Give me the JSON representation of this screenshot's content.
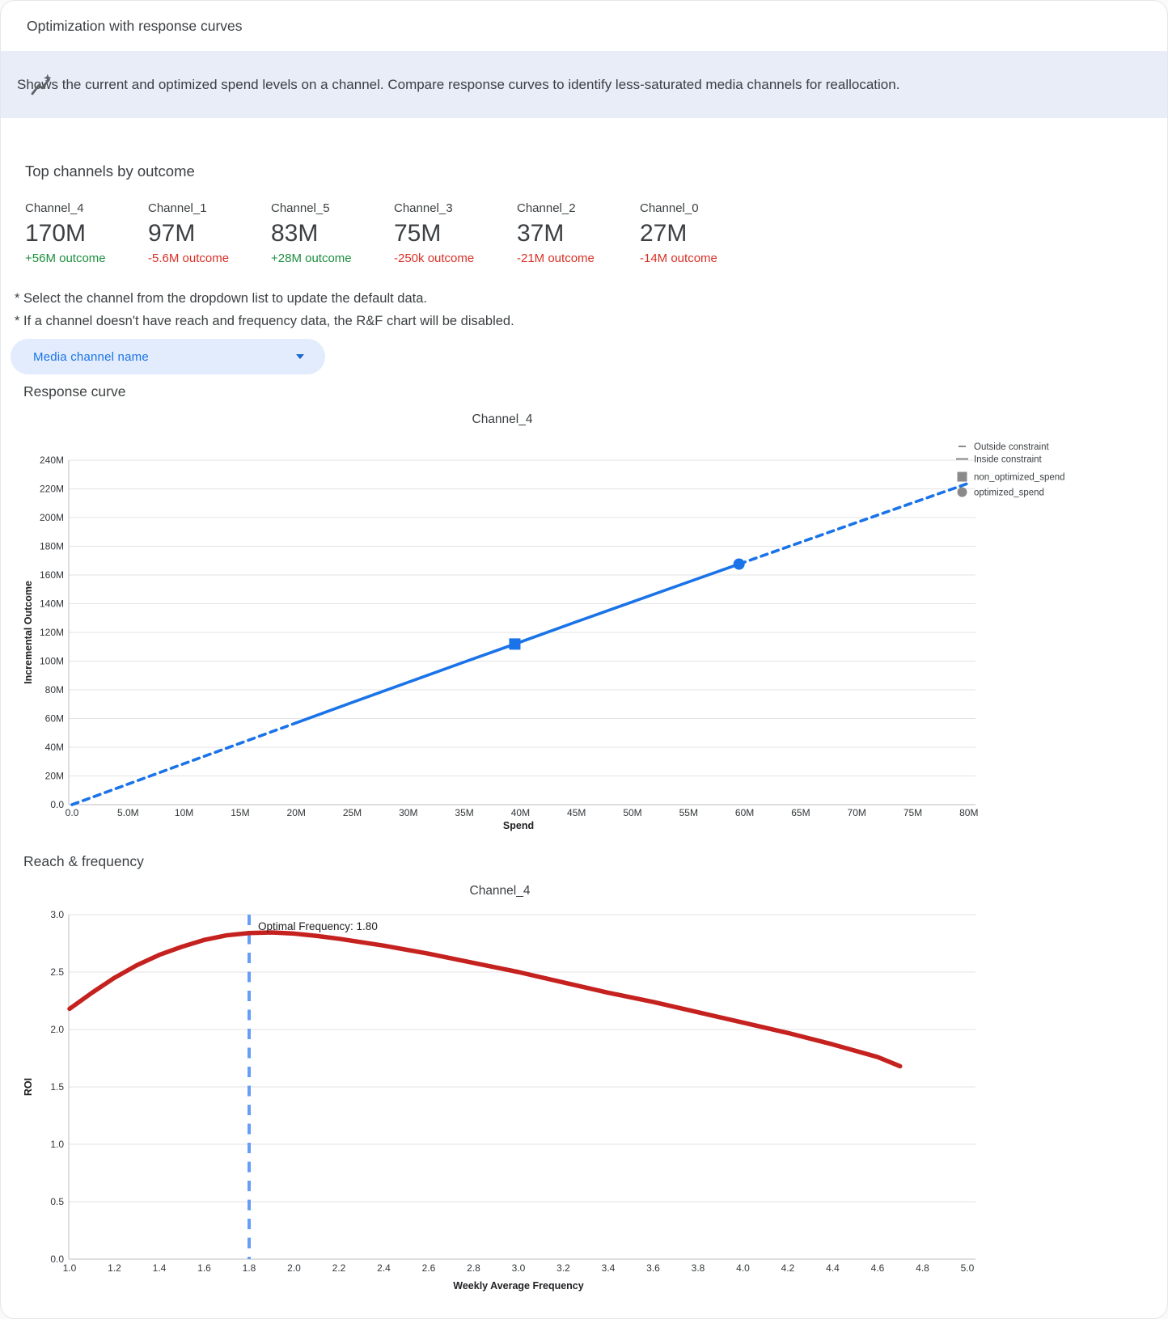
{
  "app_title": "Optimization with response curves",
  "banner": {
    "icon": "insights-icon",
    "description": "Shows the current and optimized spend levels on a channel. Compare response curves to identify less-saturated media channels for reallocation."
  },
  "colors": {
    "banner_bg": "#e8edf8",
    "chip_bg": "#e2ecfc",
    "accent_blue": "#1a73e8",
    "chip_text": "#1a73e8",
    "positive_green": "#1e8e3e",
    "negative_red": "#d93025",
    "response_line": "#1a73e8",
    "rf_line": "#c5221f",
    "optimal_rule": "#669df6",
    "legend_gray": "#8a8a8a",
    "gridline": "#e3e3e3",
    "axis_line": "#bdbdbd"
  },
  "top_channels": {
    "heading": "Top channels by outcome",
    "items": [
      {
        "name": "Channel_4",
        "value": "170M",
        "delta": "+56M outcome",
        "direction": "up"
      },
      {
        "name": "Channel_1",
        "value": "97M",
        "delta": "-5.6M outcome",
        "direction": "down"
      },
      {
        "name": "Channel_5",
        "value": "83M",
        "delta": "+28M outcome",
        "direction": "up"
      },
      {
        "name": "Channel_3",
        "value": "75M",
        "delta": "-250k outcome",
        "direction": "down"
      },
      {
        "name": "Channel_2",
        "value": "37M",
        "delta": "-21M outcome",
        "direction": "down"
      },
      {
        "name": "Channel_0",
        "value": "27M",
        "delta": "-14M outcome",
        "direction": "down"
      }
    ]
  },
  "notes": {
    "line1": "* Select the channel from the dropdown list to update the default data.",
    "line2": "* If a channel doesn't have reach and frequency data, the R&F chart will be disabled."
  },
  "dropdown": {
    "label": "Media channel name"
  },
  "response_section": {
    "heading": "Response curve"
  },
  "rf_section": {
    "heading": "Reach & frequency"
  },
  "chart_data": [
    {
      "type": "line",
      "title": "Channel_4",
      "xlabel": "Spend",
      "ylabel": "Incremental Outcome",
      "x_unit": "M",
      "xlim_m": [
        0,
        80
      ],
      "ylim_m": [
        0,
        240
      ],
      "x_ticks": [
        {
          "v": 0,
          "label": "0.0"
        },
        {
          "v": 5,
          "label": "5.0M"
        },
        {
          "v": 10,
          "label": "10M"
        },
        {
          "v": 15,
          "label": "15M"
        },
        {
          "v": 20,
          "label": "20M"
        },
        {
          "v": 25,
          "label": "25M"
        },
        {
          "v": 30,
          "label": "30M"
        },
        {
          "v": 35,
          "label": "35M"
        },
        {
          "v": 40,
          "label": "40M"
        },
        {
          "v": 45,
          "label": "45M"
        },
        {
          "v": 50,
          "label": "50M"
        },
        {
          "v": 55,
          "label": "55M"
        },
        {
          "v": 60,
          "label": "60M"
        },
        {
          "v": 65,
          "label": "65M"
        },
        {
          "v": 70,
          "label": "70M"
        },
        {
          "v": 75,
          "label": "75M"
        },
        {
          "v": 80,
          "label": "80M"
        }
      ],
      "y_ticks": [
        {
          "v": 0,
          "label": "0.0"
        },
        {
          "v": 20,
          "label": "20M"
        },
        {
          "v": 40,
          "label": "40M"
        },
        {
          "v": 60,
          "label": "60M"
        },
        {
          "v": 80,
          "label": "80M"
        },
        {
          "v": 100,
          "label": "100M"
        },
        {
          "v": 120,
          "label": "120M"
        },
        {
          "v": 140,
          "label": "140M"
        },
        {
          "v": 160,
          "label": "160M"
        },
        {
          "v": 180,
          "label": "180M"
        },
        {
          "v": 200,
          "label": "200M"
        },
        {
          "v": 220,
          "label": "220M"
        },
        {
          "v": 240,
          "label": "240M"
        }
      ],
      "series": [
        {
          "name": "Outside constraint (lower)",
          "style": "dashed",
          "points": [
            [
              0,
              0
            ],
            [
              5,
              14.3
            ],
            [
              10,
              28.6
            ],
            [
              15,
              42.8
            ],
            [
              20,
              57.0
            ]
          ]
        },
        {
          "name": "Inside constraint",
          "style": "solid",
          "points": [
            [
              20,
              57.0
            ],
            [
              25,
              71.2
            ],
            [
              30,
              85.3
            ],
            [
              35,
              99.4
            ],
            [
              39.5,
              111.9
            ],
            [
              45,
              127.4
            ],
            [
              50,
              141.3
            ],
            [
              55,
              155.2
            ],
            [
              59.5,
              167.6
            ]
          ]
        },
        {
          "name": "Outside constraint (upper)",
          "style": "dashed",
          "points": [
            [
              59.5,
              167.6
            ],
            [
              65,
              182.8
            ],
            [
              70,
              196.6
            ],
            [
              75,
              210.3
            ],
            [
              80,
              224.0
            ]
          ]
        }
      ],
      "markers": [
        {
          "name": "non_optimized_spend",
          "shape": "square",
          "x": 39.5,
          "y": 111.9
        },
        {
          "name": "optimized_spend",
          "shape": "circle",
          "x": 59.5,
          "y": 167.6
        }
      ],
      "legend": [
        {
          "marker": "dash",
          "label": "Outside constraint"
        },
        {
          "marker": "line",
          "label": "Inside constraint"
        },
        {
          "marker": "square",
          "label": "non_optimized_spend"
        },
        {
          "marker": "circle",
          "label": "optimized_spend"
        }
      ]
    },
    {
      "type": "line",
      "title": "Channel_4",
      "xlabel": "Weekly Average Frequency",
      "ylabel": "ROI",
      "xlim": [
        1.0,
        5.0
      ],
      "ylim": [
        0.0,
        3.0
      ],
      "x_ticks": [
        {
          "v": 1.0,
          "label": "1.0"
        },
        {
          "v": 1.2,
          "label": "1.2"
        },
        {
          "v": 1.4,
          "label": "1.4"
        },
        {
          "v": 1.6,
          "label": "1.6"
        },
        {
          "v": 1.8,
          "label": "1.8"
        },
        {
          "v": 2.0,
          "label": "2.0"
        },
        {
          "v": 2.2,
          "label": "2.2"
        },
        {
          "v": 2.4,
          "label": "2.4"
        },
        {
          "v": 2.6,
          "label": "2.6"
        },
        {
          "v": 2.8,
          "label": "2.8"
        },
        {
          "v": 3.0,
          "label": "3.0"
        },
        {
          "v": 3.2,
          "label": "3.2"
        },
        {
          "v": 3.4,
          "label": "3.4"
        },
        {
          "v": 3.6,
          "label": "3.6"
        },
        {
          "v": 3.8,
          "label": "3.8"
        },
        {
          "v": 4.0,
          "label": "4.0"
        },
        {
          "v": 4.2,
          "label": "4.2"
        },
        {
          "v": 4.4,
          "label": "4.4"
        },
        {
          "v": 4.6,
          "label": "4.6"
        },
        {
          "v": 4.8,
          "label": "4.8"
        },
        {
          "v": 5.0,
          "label": "5.0"
        }
      ],
      "y_ticks": [
        {
          "v": 0.0,
          "label": "0.0"
        },
        {
          "v": 0.5,
          "label": "0.5"
        },
        {
          "v": 1.0,
          "label": "1.0"
        },
        {
          "v": 1.5,
          "label": "1.5"
        },
        {
          "v": 2.0,
          "label": "2.0"
        },
        {
          "v": 2.5,
          "label": "2.5"
        },
        {
          "v": 3.0,
          "label": "3.0"
        }
      ],
      "curve": [
        [
          1.0,
          2.18
        ],
        [
          1.1,
          2.32
        ],
        [
          1.2,
          2.45
        ],
        [
          1.3,
          2.56
        ],
        [
          1.4,
          2.65
        ],
        [
          1.5,
          2.72
        ],
        [
          1.6,
          2.78
        ],
        [
          1.7,
          2.82
        ],
        [
          1.8,
          2.84
        ],
        [
          1.9,
          2.845
        ],
        [
          2.0,
          2.835
        ],
        [
          2.1,
          2.815
        ],
        [
          2.2,
          2.79
        ],
        [
          2.4,
          2.73
        ],
        [
          2.6,
          2.66
        ],
        [
          2.8,
          2.58
        ],
        [
          3.0,
          2.5
        ],
        [
          3.2,
          2.41
        ],
        [
          3.4,
          2.32
        ],
        [
          3.6,
          2.24
        ],
        [
          3.8,
          2.15
        ],
        [
          4.0,
          2.06
        ],
        [
          4.2,
          1.97
        ],
        [
          4.4,
          1.87
        ],
        [
          4.6,
          1.76
        ],
        [
          4.7,
          1.68
        ]
      ],
      "optimal_frequency": {
        "value": 1.8,
        "annotation": "Optimal Frequency: 1.80"
      }
    }
  ]
}
